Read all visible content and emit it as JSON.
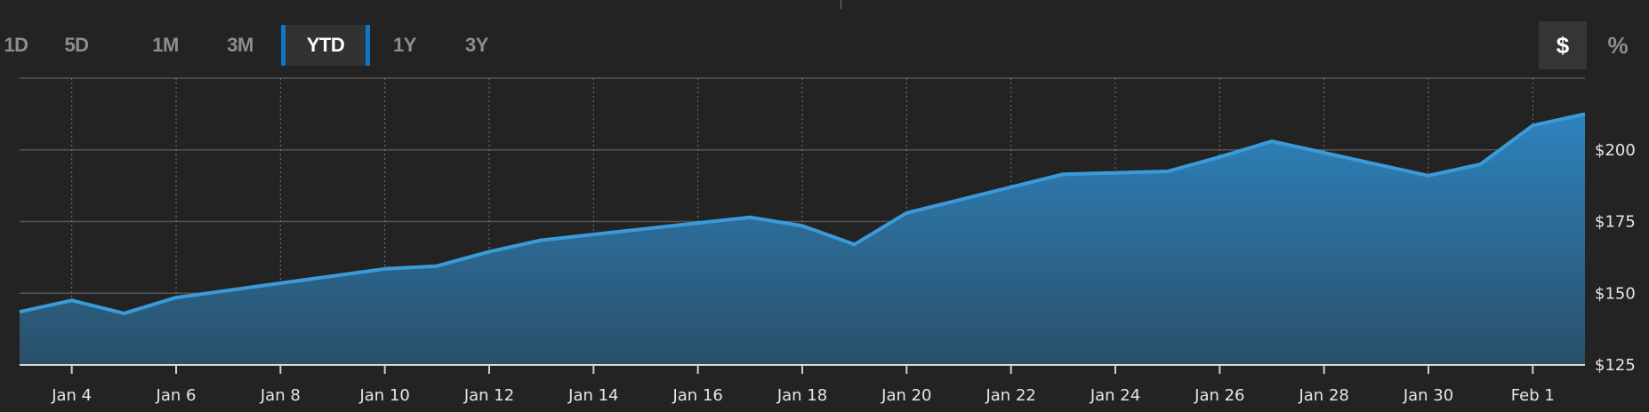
{
  "range_tabs": [
    {
      "label": "1D",
      "active": false
    },
    {
      "label": "5D",
      "active": false
    },
    {
      "label": "1M",
      "active": false
    },
    {
      "label": "3M",
      "active": false
    },
    {
      "label": "YTD",
      "active": true
    },
    {
      "label": "1Y",
      "active": false
    },
    {
      "label": "3Y",
      "active": false
    }
  ],
  "unit_toggle": {
    "dollar_label": "$",
    "percent_label": "%",
    "selected": "$"
  },
  "colors": {
    "background": "#232323",
    "line": "#3b9ad8",
    "fill_top": "#2d83bf",
    "fill_bottom": "#2a4f68",
    "active_tab_accent": "#1376c4",
    "grid": "#4a4a4a"
  },
  "chart_data": {
    "type": "area",
    "title": "",
    "xlabel": "",
    "ylabel": "",
    "x": [
      "Jan 3",
      "Jan 4",
      "Jan 5",
      "Jan 6",
      "Jan 7",
      "Jan 8",
      "Jan 9",
      "Jan 10",
      "Jan 11",
      "Jan 12",
      "Jan 13",
      "Jan 14",
      "Jan 15",
      "Jan 16",
      "Jan 17",
      "Jan 18",
      "Jan 19",
      "Jan 20",
      "Jan 21",
      "Jan 22",
      "Jan 23",
      "Jan 24",
      "Jan 25",
      "Jan 26",
      "Jan 27",
      "Jan 28",
      "Jan 29",
      "Jan 30",
      "Jan 31",
      "Feb 1",
      "Feb 2"
    ],
    "values": [
      143.5,
      147.5,
      143.0,
      148.5,
      151.0,
      153.5,
      156.0,
      158.5,
      159.5,
      164.5,
      168.5,
      170.5,
      172.5,
      174.5,
      176.5,
      173.5,
      167.0,
      178.0,
      182.5,
      187.0,
      191.5,
      192.0,
      192.5,
      197.5,
      203.0,
      199.0,
      195.0,
      191.0,
      195.0,
      208.5,
      212.5
    ],
    "x_tick_labels": [
      "Jan 4",
      "Jan 6",
      "Jan 8",
      "Jan 10",
      "Jan 12",
      "Jan 14",
      "Jan 16",
      "Jan 18",
      "Jan 20",
      "Jan 22",
      "Jan 24",
      "Jan 26",
      "Jan 28",
      "Jan 30",
      "Feb 1"
    ],
    "y_ticks": [
      125,
      150,
      175,
      200
    ],
    "y_tick_labels": [
      "$125",
      "$150",
      "$175",
      "$200"
    ],
    "ylim": [
      125,
      225
    ],
    "grid": {
      "horizontal": "solid",
      "vertical": "dotted"
    },
    "y_axis_position": "right"
  }
}
